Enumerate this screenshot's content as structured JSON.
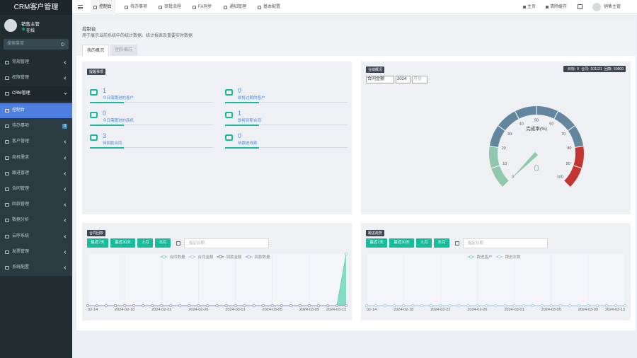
{
  "sidebar": {
    "logo": "CRM客户管理",
    "user": "销售主管",
    "status": "在线",
    "search": "搜索菜单",
    "menu": [
      "常规管理",
      "权限管理",
      "CRM管理"
    ],
    "submenu": [
      {
        "label": "控制台"
      },
      {
        "label": "待办事项",
        "badge": 3
      },
      {
        "label": "客户管理"
      },
      {
        "label": "商机需求"
      },
      {
        "label": "跟进管理"
      },
      {
        "label": "合同管理"
      },
      {
        "label": "回款管理"
      },
      {
        "label": "数据分析"
      },
      {
        "label": "云呼系统"
      },
      {
        "label": "发票管理"
      },
      {
        "label": "系统配置"
      }
    ]
  },
  "topnav": {
    "tabs": [
      "控制台",
      "待办事项",
      "审批流程",
      "FA同步",
      "通知管理",
      "基本配置"
    ],
    "right": [
      "主页",
      "清除缓存"
    ],
    "user": "销售主管"
  },
  "header": {
    "title": "控制台",
    "subtitle": "用于展示当前系统中的统计数据、统计报表及重要实时数据",
    "tabs": [
      "我的概况",
      "团队概况"
    ]
  },
  "reminders": {
    "title": "提醒事项",
    "items": [
      {
        "count": 1,
        "label": "今日需跟进的客户"
      },
      {
        "count": 0,
        "label": "即将过期的客户"
      },
      {
        "count": 0,
        "label": "今日需跟进的商机"
      },
      {
        "count": 1,
        "label": "即将到期合同"
      },
      {
        "count": 3,
        "label": "待回款合同"
      },
      {
        "count": 0,
        "label": "待跟进线索"
      }
    ]
  },
  "performance": {
    "title": "业绩概况",
    "selects": [
      "合同金额",
      "2024",
      "月份"
    ],
    "stats": [
      {
        "label": "目标:",
        "value": 0
      },
      {
        "label": "合同:",
        "value": 101121
      },
      {
        "label": "回款:",
        "value": 50000
      }
    ]
  },
  "chart_data": [
    {
      "type": "gauge",
      "title": "完成率(%)",
      "value": 0,
      "ylim": [
        0,
        100
      ],
      "yticks": [
        0,
        10,
        20,
        30,
        40,
        50,
        60,
        70,
        80,
        90,
        100
      ],
      "bands": [
        {
          "to": 20,
          "color": "#91c7ae"
        },
        {
          "to": 80,
          "color": "#63869e"
        },
        {
          "to": 100,
          "color": "#c23531"
        }
      ]
    },
    {
      "type": "line",
      "title": "合同回款",
      "buttons": [
        "最近7天",
        "最近30天",
        "上月",
        "本月"
      ],
      "date_placeholder": "指定日期",
      "categories": [
        "02-14",
        null,
        null,
        null,
        "2024-02-18",
        null,
        null,
        null,
        "2024-02-22",
        null,
        null,
        null,
        "2024-02-26",
        null,
        null,
        null,
        "2024-03-01",
        null,
        null,
        null,
        "2024-03-05",
        null,
        null,
        null,
        "2024-03-09",
        null,
        null,
        null,
        "2024-03-13"
      ],
      "ylim": [
        0,
        1
      ],
      "series": [
        {
          "name": "合同数量",
          "color": "#5fd3b0",
          "area": true,
          "values": [
            0,
            0,
            0,
            0,
            0,
            0,
            0,
            0,
            0,
            0,
            0,
            0,
            0,
            0,
            0,
            0,
            0,
            0,
            0,
            0,
            0,
            0,
            0,
            0,
            0,
            0,
            0,
            0,
            1
          ]
        },
        {
          "name": "合同金额",
          "color": "#9ec3e6",
          "values": [
            0,
            0,
            0,
            0,
            0,
            0,
            0,
            0,
            0,
            0,
            0,
            0,
            0,
            0,
            0,
            0,
            0,
            0,
            0,
            0,
            0,
            0,
            0,
            0,
            0,
            0,
            0,
            0,
            0
          ]
        },
        {
          "name": "回款金额",
          "color": "#666f80",
          "values": [
            0,
            0,
            0,
            0,
            0,
            0,
            0,
            0,
            0,
            0,
            0,
            0,
            0,
            0,
            0,
            0,
            0,
            0,
            0,
            0,
            0,
            0,
            0,
            0,
            0,
            0,
            0,
            0,
            0
          ]
        },
        {
          "name": "回款数量",
          "color": "#9b93c9",
          "values": [
            0,
            0,
            0,
            0,
            0,
            0,
            0,
            0,
            0,
            0,
            0,
            0,
            0,
            0,
            0,
            0,
            0,
            0,
            0,
            0,
            0,
            0,
            0,
            0,
            0,
            0,
            0,
            0,
            0
          ]
        }
      ]
    },
    {
      "type": "line",
      "title": "跟进趋势",
      "buttons": [
        "最近7天",
        "最近30天",
        "上月",
        "本月"
      ],
      "date_placeholder": "指定日期",
      "categories": [
        "02-14",
        null,
        null,
        null,
        "2024-02-18",
        null,
        null,
        null,
        "2024-02-22",
        null,
        null,
        null,
        "2024-02-26",
        null,
        null,
        null,
        "2024-03-01",
        null,
        null,
        null,
        "2024-03-05",
        null,
        null,
        null,
        "2024-03-09",
        null,
        null,
        null,
        "2024-03-13"
      ],
      "ylim": [
        0,
        1
      ],
      "series": [
        {
          "name": "跟进客户",
          "color": "#5fd3b0",
          "values": [
            0,
            0,
            0,
            0,
            0,
            0,
            0,
            0,
            0,
            0,
            0,
            0,
            0,
            0,
            0,
            0,
            0,
            0,
            0,
            0,
            0,
            0,
            0,
            0,
            0,
            0,
            0,
            0,
            0
          ]
        },
        {
          "name": "跟进次数",
          "color": "#9ec3e6",
          "values": [
            0,
            0,
            0,
            0,
            0,
            0,
            0,
            0,
            0,
            0,
            0,
            0,
            0,
            0,
            0,
            0,
            0,
            0,
            0,
            0,
            0,
            0,
            0,
            0,
            0,
            0,
            0,
            0,
            0
          ]
        }
      ]
    }
  ]
}
